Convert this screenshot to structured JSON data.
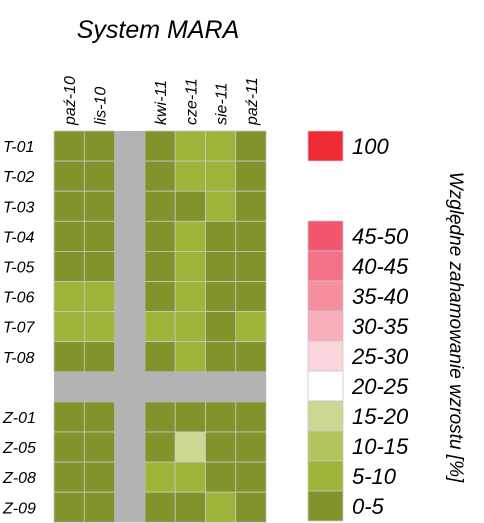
{
  "chart_data": {
    "type": "heatmap",
    "title": "System MARA",
    "columns": [
      "paź-10",
      "lis-10",
      "",
      "kwi-11",
      "cze-11",
      "sie-11",
      "paź-11"
    ],
    "rows": [
      "T-01",
      "T-02",
      "T-03",
      "T-04",
      "T-05",
      "T-06",
      "T-07",
      "T-08",
      "",
      "Z-01",
      "Z-05",
      "Z-08",
      "Z-09"
    ],
    "values": [
      [
        "0-5",
        "0-5",
        null,
        "0-5",
        "5-10",
        "5-10",
        "0-5"
      ],
      [
        "0-5",
        "0-5",
        null,
        "0-5",
        "5-10",
        "5-10",
        "0-5"
      ],
      [
        "0-5",
        "0-5",
        null,
        "0-5",
        "0-5",
        "5-10",
        "0-5"
      ],
      [
        "0-5",
        "0-5",
        null,
        "0-5",
        "5-10",
        "0-5",
        "0-5"
      ],
      [
        "0-5",
        "0-5",
        null,
        "0-5",
        "5-10",
        "0-5",
        "0-5"
      ],
      [
        "5-10",
        "5-10",
        null,
        "0-5",
        "5-10",
        "0-5",
        "0-5"
      ],
      [
        "5-10",
        "5-10",
        null,
        "5-10",
        "5-10",
        "0-5",
        "5-10"
      ],
      [
        "0-5",
        "0-5",
        null,
        "0-5",
        "5-10",
        "0-5",
        "0-5"
      ],
      [
        null,
        null,
        null,
        null,
        null,
        null,
        null
      ],
      [
        "0-5",
        "0-5",
        null,
        "0-5",
        "0-5",
        "0-5",
        "0-5"
      ],
      [
        "0-5",
        "0-5",
        null,
        "0-5",
        "15-20",
        "0-5",
        "0-5"
      ],
      [
        "0-5",
        "0-5",
        null,
        "5-10",
        "5-10",
        "0-5",
        "0-5"
      ],
      [
        "0-5",
        "0-5",
        null,
        "0-5",
        "0-5",
        "5-10",
        "0-5"
      ]
    ],
    "legend": {
      "title": "Względne zahamowanie wzrostu [%]",
      "placement": "right",
      "entries": [
        {
          "label": "100",
          "color": "#ee2a33"
        },
        {
          "label": "45-50",
          "color": "#f2556e"
        },
        {
          "label": "40-45",
          "color": "#f47288"
        },
        {
          "label": "35-40",
          "color": "#f68ea0"
        },
        {
          "label": "30-35",
          "color": "#f8aebb"
        },
        {
          "label": "25-30",
          "color": "#fcd5dc"
        },
        {
          "label": "20-25",
          "color": "#ffffff"
        },
        {
          "label": "15-20",
          "color": "#ccd891"
        },
        {
          "label": "10-15",
          "color": "#b2c55c"
        },
        {
          "label": "5-10",
          "color": "#9db539"
        },
        {
          "label": "0-5",
          "color": "#80942b"
        }
      ]
    },
    "gap_color": "#b3b3b3",
    "grid": true
  }
}
